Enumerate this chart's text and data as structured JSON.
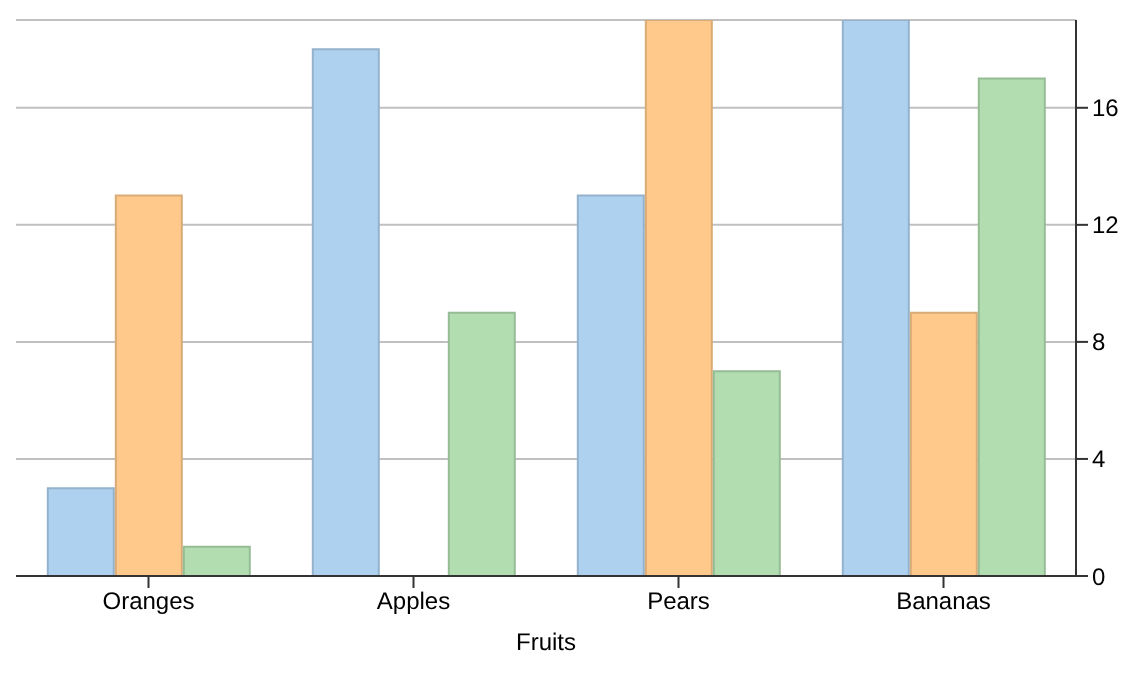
{
  "chart_data": {
    "type": "bar",
    "xlabel": "Fruits",
    "categories": [
      "Oranges",
      "Apples",
      "Pears",
      "Bananas"
    ],
    "series": [
      {
        "color": "#aed1f0",
        "values": [
          3,
          18,
          13,
          19
        ]
      },
      {
        "color": "#ffc98c",
        "values": [
          13,
          null,
          19,
          9
        ]
      },
      {
        "color": "#b1ddb1",
        "values": [
          1,
          9,
          7,
          17
        ]
      }
    ],
    "ylim": [
      0,
      19
    ],
    "yticks": [
      0,
      4,
      8,
      12,
      16
    ],
    "grid": "y",
    "legend": false
  }
}
